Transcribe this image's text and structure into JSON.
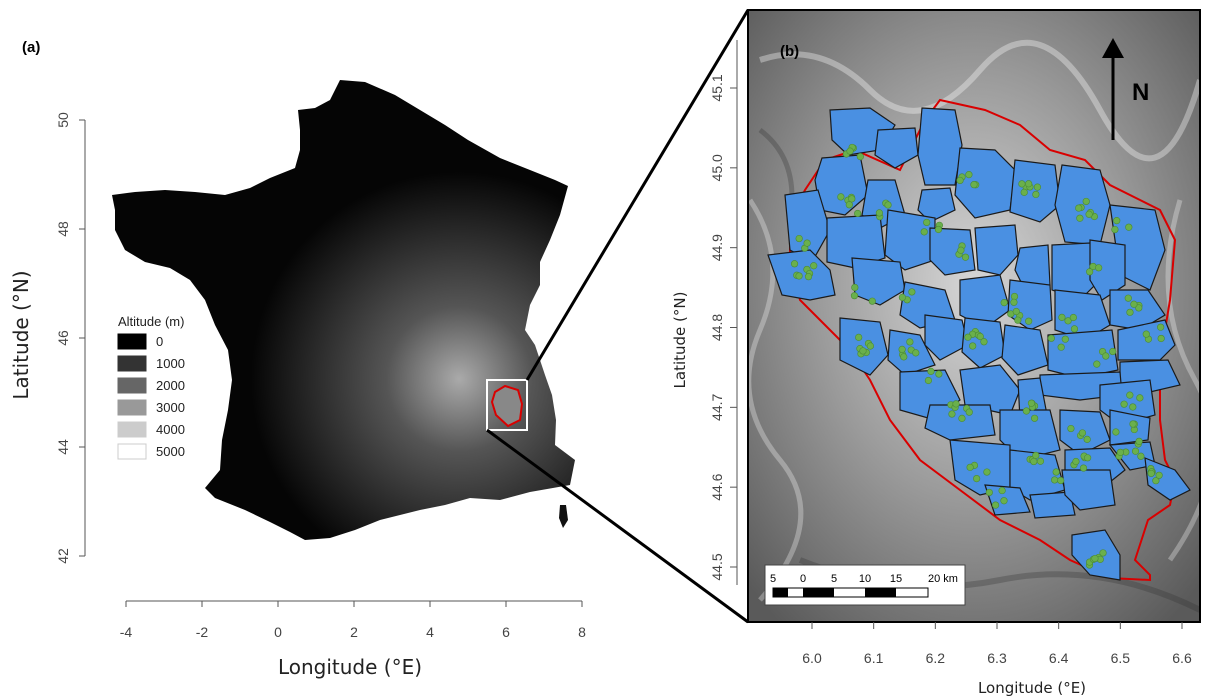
{
  "panel_a": {
    "label": "(a)",
    "x_axis": {
      "title": "Longitude (°E)",
      "ticks": [
        "-4",
        "-2",
        "0",
        "2",
        "4",
        "6",
        "8"
      ]
    },
    "y_axis": {
      "title": "Latitude (°N)",
      "ticks": [
        "42",
        "44",
        "46",
        "48",
        "50"
      ]
    },
    "legend": {
      "title": "Altitude (m)",
      "entries": [
        {
          "label": "0",
          "color": "#000000"
        },
        {
          "label": "1000",
          "color": "#333333"
        },
        {
          "label": "2000",
          "color": "#666666"
        },
        {
          "label": "3000",
          "color": "#999999"
        },
        {
          "label": "4000",
          "color": "#cccccc"
        },
        {
          "label": "5000",
          "color": "#ffffff"
        }
      ]
    }
  },
  "panel_b": {
    "label": "(b)",
    "x_axis": {
      "title": "Longitude (°E)",
      "ticks": [
        "6.0",
        "6.1",
        "6.2",
        "6.3",
        "6.4",
        "6.5",
        "6.6"
      ]
    },
    "y_axis": {
      "title": "Latitude (°N)",
      "ticks": [
        "44.5",
        "44.6",
        "44.7",
        "44.8",
        "44.9",
        "45.0",
        "45.1"
      ]
    },
    "north_label": "N",
    "scale_bar": {
      "labels": [
        "5",
        "0",
        "5",
        "10",
        "15",
        "20 km"
      ]
    },
    "colors": {
      "territory": "#4a90e2",
      "point": "#6ab04c",
      "boundary": "#d90000"
    }
  }
}
